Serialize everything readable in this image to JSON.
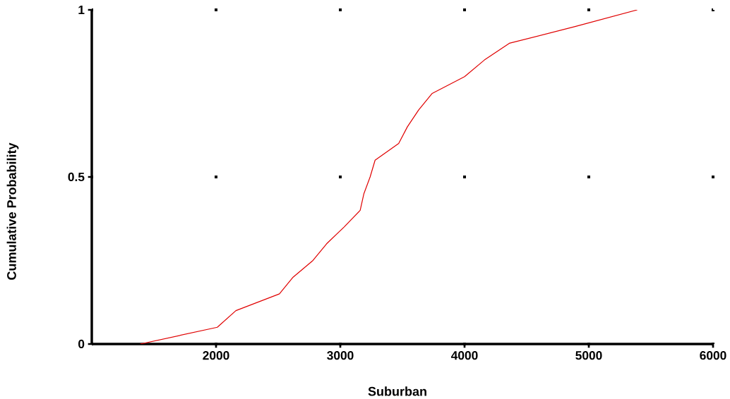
{
  "chart_data": {
    "type": "line",
    "xlabel": "Suburban",
    "ylabel": "Cumulative Probability",
    "x": [
      1390,
      2010,
      2160,
      2510,
      2620,
      2780,
      2890,
      3030,
      3160,
      3190,
      3240,
      3280,
      3470,
      3540,
      3630,
      3740,
      4000,
      4160,
      4360,
      4890,
      5390
    ],
    "series": [
      {
        "color": "#e00000",
        "values": [
          0,
          0.05,
          0.1,
          0.15,
          0.2,
          0.25,
          0.3,
          0.35,
          0.4,
          0.45,
          0.5,
          0.55,
          0.6,
          0.65,
          0.7,
          0.75,
          0.8,
          0.85,
          0.9,
          0.95,
          1
        ]
      }
    ],
    "xlim": [
      1000,
      6000
    ],
    "ylim": [
      0,
      1
    ],
    "xticks": [
      2000,
      3000,
      4000,
      5000,
      6000
    ],
    "yticks": [
      0,
      0.5,
      1
    ],
    "grid": true
  }
}
